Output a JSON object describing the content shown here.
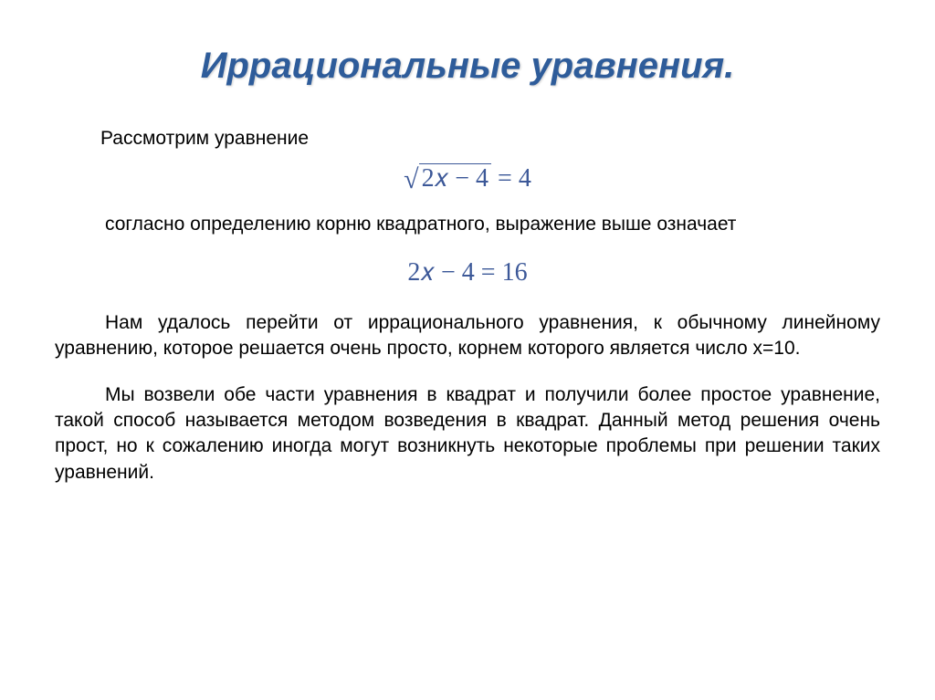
{
  "title": "Иррациональные уравнения.",
  "intro": "Рассмотрим уравнение",
  "eq1_inner": "2𝑥 − 4",
  "eq1_rhs": " = 4",
  "definition": "согласно определению корню квадратного, выражение выше означает",
  "eq2": "2𝑥 − 4 = 16",
  "para1": "Нам удалось перейти от иррационального уравнения, к обычному линейному уравнению, которое решается очень просто, корнем которого является число x=10.",
  "para2": "Мы возвели обе части уравнения в квадрат и получили более простое уравнение, такой способ называется методом возведения в квадрат. Данный метод решения очень прост, но к сожалению иногда могут возникнуть некоторые проблемы при решении таких уравнений.",
  "colors": {
    "title_color": "#2e5c9a",
    "equation_color": "#3c5898",
    "text_color": "#000000",
    "background": "#ffffff"
  },
  "typography": {
    "title_fontsize": 40,
    "body_fontsize": 21,
    "equation_fontsize": 28
  }
}
